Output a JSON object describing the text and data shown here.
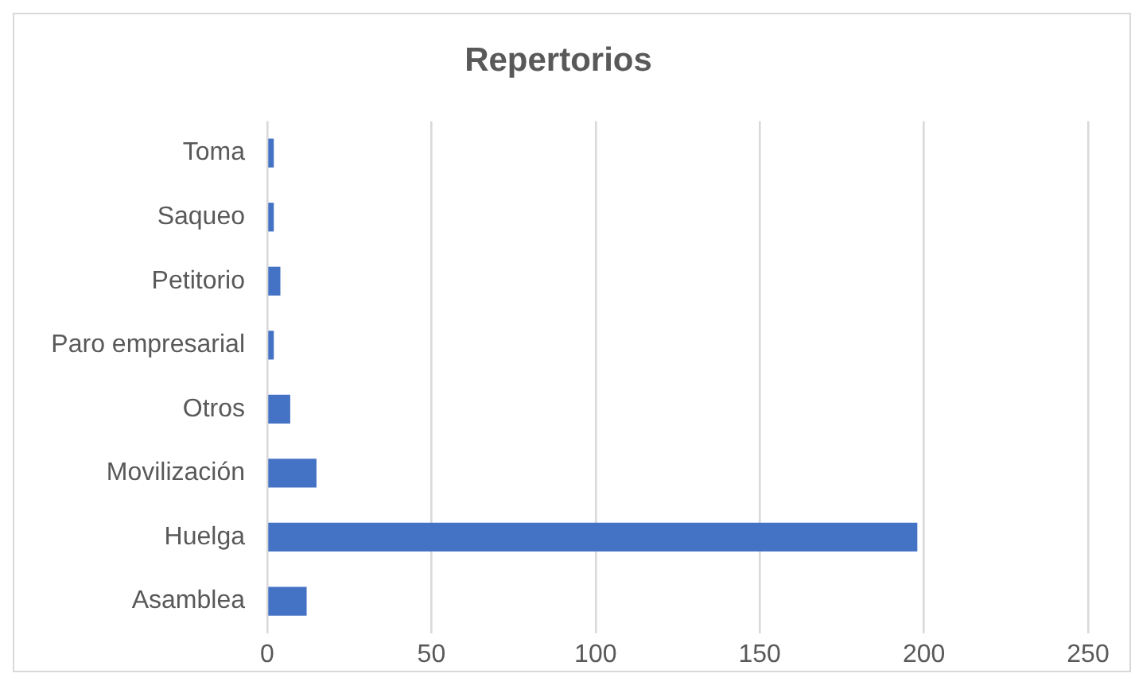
{
  "chart_data": {
    "type": "bar",
    "orientation": "horizontal",
    "title": "Repertorios",
    "categories": [
      "Toma",
      "Saqueo",
      "Petitorio",
      "Paro empresarial",
      "Otros",
      "Movilización",
      "Huelga",
      "Asamblea"
    ],
    "values": [
      2,
      2,
      4,
      2,
      7,
      15,
      198,
      12
    ],
    "color": "#4472c4",
    "xlim": [
      0,
      250
    ],
    "xticks": [
      0,
      50,
      100,
      150,
      200,
      250
    ],
    "grid": "x",
    "legend": false
  }
}
